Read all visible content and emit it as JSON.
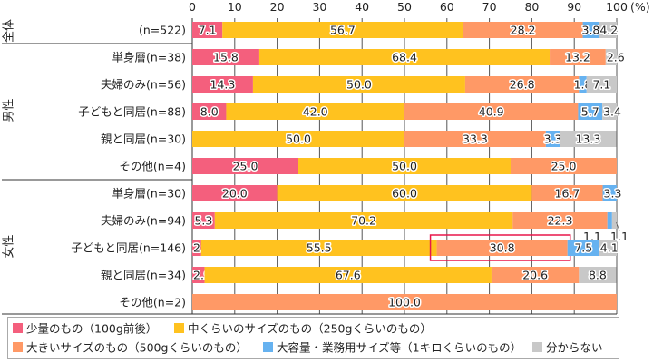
{
  "chart_data": {
    "type": "bar",
    "orientation": "horizontal",
    "stacked": true,
    "xlim": [
      0,
      100
    ],
    "xticks": [
      "0",
      "10",
      "20",
      "30",
      "40",
      "50",
      "60",
      "70",
      "80",
      "90",
      "100"
    ],
    "xunit": "(%)",
    "grid": true,
    "legend_position": "bottom",
    "series": [
      {
        "name": "少量のもの（100g前後）",
        "color": "#F45F7D"
      },
      {
        "name": "中くらいのサイズのもの（250gくらいのもの）",
        "color": "#FFC21F"
      },
      {
        "name": "大きいサイズのもの（500gくらいのもの）",
        "color": "#FF9966"
      },
      {
        "name": "大容量・業務用サイズ等（1キロくらいのもの）",
        "color": "#66B2F0"
      },
      {
        "name": "分からない",
        "color": "#C8C8C8"
      }
    ],
    "groups": [
      {
        "label": "全体",
        "rows": [
          {
            "category": "(n=522)",
            "values": [
              7.1,
              56.7,
              28.2,
              3.8,
              4.2
            ]
          }
        ]
      },
      {
        "label": "男性",
        "rows": [
          {
            "category": "単身層(n=38)",
            "values": [
              15.8,
              68.4,
              13.2,
              0,
              2.6
            ]
          },
          {
            "category": "夫婦のみ(n=56)",
            "values": [
              14.3,
              50.0,
              26.8,
              1.8,
              7.1
            ]
          },
          {
            "category": "子どもと同居(n=88)",
            "values": [
              8.0,
              42.0,
              40.9,
              5.7,
              3.4
            ]
          },
          {
            "category": "親と同居(n=30)",
            "values": [
              0,
              50.0,
              33.3,
              3.3,
              13.3
            ]
          },
          {
            "category": "その他(n=4)",
            "values": [
              25.0,
              50.0,
              25.0,
              0,
              0
            ]
          }
        ]
      },
      {
        "label": "女性",
        "rows": [
          {
            "category": "単身層(n=30)",
            "values": [
              20.0,
              60.0,
              16.7,
              3.3,
              0
            ]
          },
          {
            "category": "夫婦のみ(n=94)",
            "values": [
              5.3,
              70.2,
              22.3,
              1.1,
              1.1
            ]
          },
          {
            "category": "子どもと同居(n=146)",
            "values": [
              2.1,
              55.5,
              30.8,
              7.5,
              4.1
            ]
          },
          {
            "category": "親と同居(n=34)",
            "values": [
              2.9,
              67.6,
              20.6,
              0,
              8.8
            ]
          },
          {
            "category": "その他(n=2)",
            "values": [
              0,
              0,
              100.0,
              0,
              0
            ]
          }
        ]
      }
    ],
    "highlight": {
      "group": "女性",
      "category": "子どもと同居(n=146)",
      "series": "大きいサイズのもの（500gくらいのもの）",
      "color": "#E8174A"
    }
  }
}
